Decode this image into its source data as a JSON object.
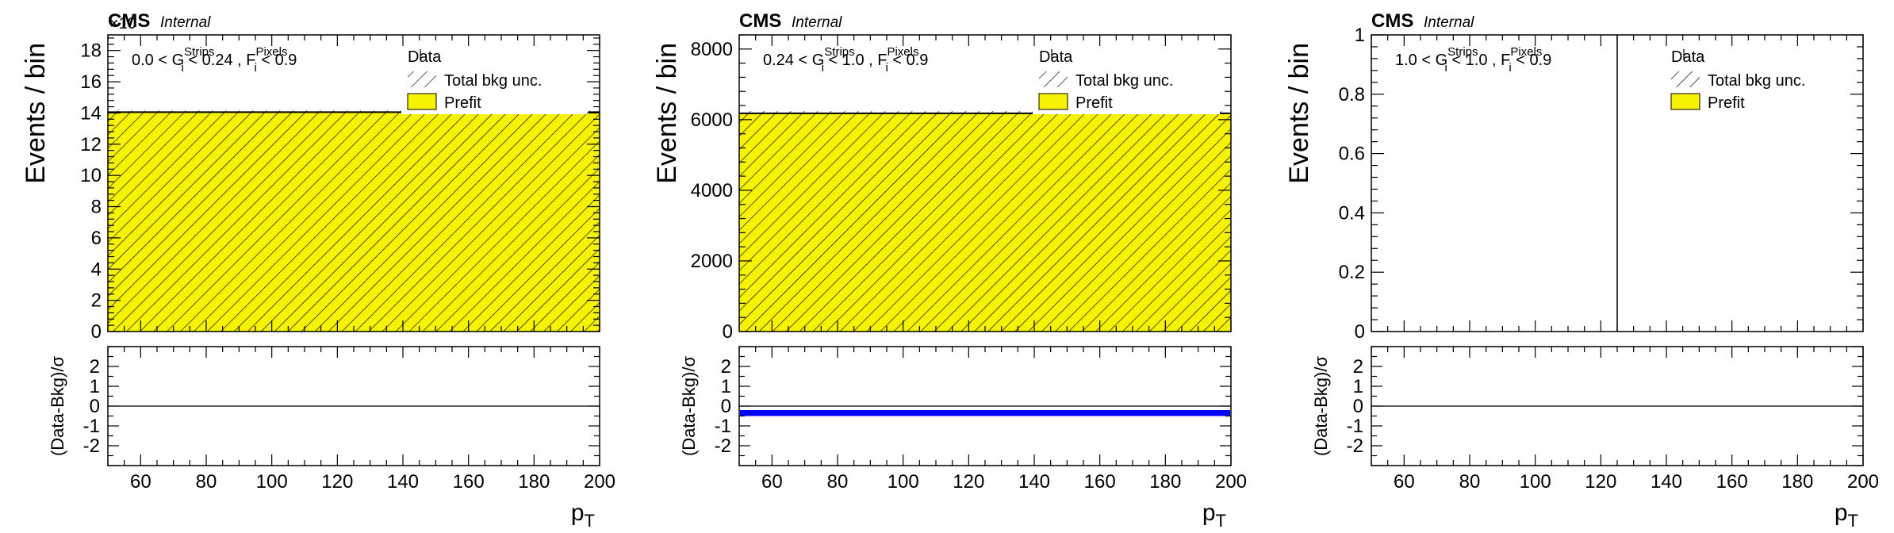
{
  "figure": {
    "experiment": "CMS",
    "status": "Internal",
    "x_axis_label": "p",
    "x_axis_label_sub": "T",
    "y_axis_label": "Events / bin",
    "ratio_axis_label": "(Data-Bkg)/σ",
    "legend": {
      "data": "Data",
      "unc": "Total bkg unc.",
      "prefit": "Prefit"
    },
    "colors": {
      "prefit_fill": "#f6f200",
      "hatch": "#000000",
      "pull_band": "#0000ff",
      "frame": "#000000"
    }
  },
  "chart_data": [
    {
      "type": "bar",
      "panel": 1,
      "region": {
        "lo": "0.0",
        "op1": "<",
        "g": "G",
        "g_sub": "i",
        "g_sup": "Strips",
        "op2": "< 0.24 ,",
        "f": "F",
        "f_sub": "i",
        "f_sup": "Pixels",
        "f_cut": "< 0.9"
      },
      "exponent_label": "×10",
      "x": {
        "range": [
          50,
          200
        ],
        "ticks": [
          60,
          80,
          100,
          120,
          140,
          160,
          180,
          200
        ]
      },
      "y": {
        "range": [
          0,
          19
        ],
        "ticks": [
          0,
          2,
          4,
          6,
          8,
          10,
          12,
          14,
          16,
          18
        ]
      },
      "bins": [
        {
          "x_low": 50,
          "x_high": 200,
          "prefit": 14.05,
          "unc": 0.1
        }
      ],
      "pull": {
        "range": [
          -3,
          3
        ],
        "ticks": [
          -2,
          -1,
          0,
          1,
          2
        ],
        "line": 0,
        "band": null
      }
    },
    {
      "type": "bar",
      "panel": 2,
      "region": {
        "lo": "0.24",
        "op1": "<",
        "g": "G",
        "g_sub": "i",
        "g_sup": "Strips",
        "op2": "< 1.0 ,",
        "f": "F",
        "f_sub": "i",
        "f_sup": "Pixels",
        "f_cut": "< 0.9"
      },
      "exponent_label": "",
      "x": {
        "range": [
          50,
          200
        ],
        "ticks": [
          60,
          80,
          100,
          120,
          140,
          160,
          180,
          200
        ]
      },
      "y": {
        "range": [
          0,
          8400
        ],
        "ticks": [
          0,
          2000,
          4000,
          6000,
          8000
        ]
      },
      "bins": [
        {
          "x_low": 50,
          "x_high": 200,
          "prefit": 6180,
          "unc": 60
        }
      ],
      "pull": {
        "range": [
          -3,
          3
        ],
        "ticks": [
          -2,
          -1,
          0,
          1,
          2
        ],
        "line": 0,
        "band": [
          -0.5,
          -0.2
        ]
      }
    },
    {
      "type": "bar",
      "panel": 3,
      "region": {
        "lo": "1.0",
        "op1": "<",
        "g": "G",
        "g_sub": "i",
        "g_sup": "Strips",
        "op2": "< 1.0 ,",
        "f": "F",
        "f_sub": "i",
        "f_sup": "Pixels",
        "f_cut": "< 0.9"
      },
      "exponent_label": "",
      "x": {
        "range": [
          50,
          200
        ],
        "ticks": [
          60,
          80,
          100,
          120,
          140,
          160,
          180,
          200
        ]
      },
      "y": {
        "range": [
          0,
          1
        ],
        "ticks": [
          0,
          0.2,
          0.4,
          0.6,
          0.8,
          1
        ]
      },
      "bins": [],
      "vline_x": 125,
      "pull": {
        "range": [
          -3,
          3
        ],
        "ticks": [
          -2,
          -1,
          0,
          1,
          2
        ],
        "line": 0,
        "band": null
      }
    }
  ]
}
